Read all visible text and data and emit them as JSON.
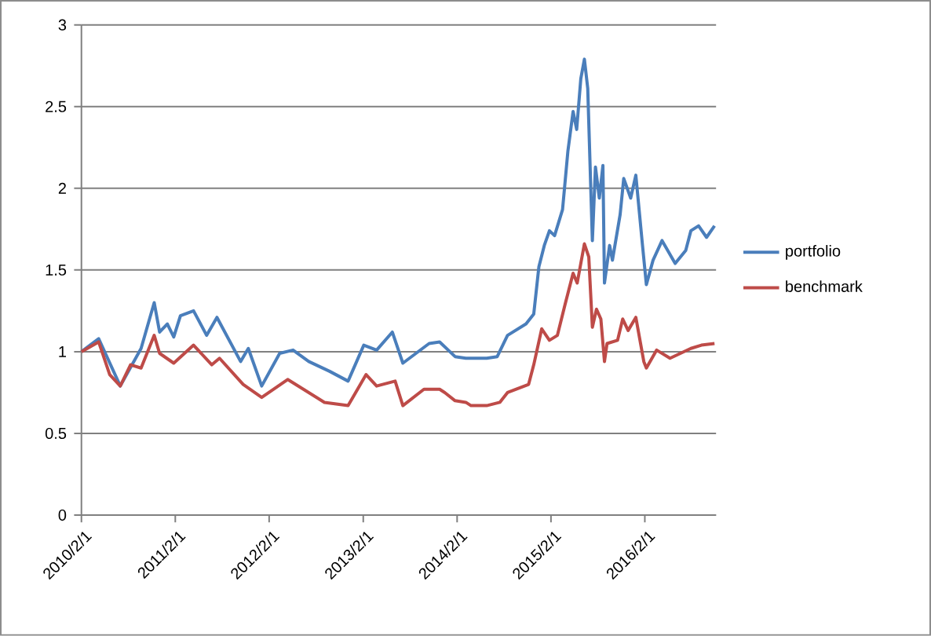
{
  "chart_data": {
    "type": "line",
    "xlim": [
      "2010-02-01",
      "2016-11-04"
    ],
    "ylim": [
      0,
      3
    ],
    "xticks": [
      {
        "value": "2010-02-01",
        "label": "2010/2/1"
      },
      {
        "value": "2011-02-01",
        "label": "2011/2/1"
      },
      {
        "value": "2012-02-01",
        "label": "2012/2/1"
      },
      {
        "value": "2013-02-01",
        "label": "2013/2/1"
      },
      {
        "value": "2014-02-01",
        "label": "2014/2/1"
      },
      {
        "value": "2015-02-01",
        "label": "2015/2/1"
      },
      {
        "value": "2016-02-01",
        "label": "2016/2/1"
      }
    ],
    "yticks": [
      0,
      0.5,
      1,
      1.5,
      2,
      2.5,
      3
    ],
    "grid": "y",
    "legend": "right",
    "marker": "none",
    "line_style": "solid",
    "series": [
      {
        "name": "portfolio",
        "color": "#4a7ebb",
        "x": [
          "2010-02-01",
          "2010-04-09",
          "2010-07-02",
          "2010-09-21",
          "2010-11-11",
          "2010-12-02",
          "2011-01-01",
          "2011-01-26",
          "2011-02-21",
          "2011-04-13",
          "2011-06-03",
          "2011-07-13",
          "2011-10-13",
          "2011-11-12",
          "2012-01-03",
          "2012-03-13",
          "2012-05-04",
          "2012-07-04",
          "2012-09-23",
          "2012-12-04",
          "2013-02-03",
          "2013-03-25",
          "2013-05-25",
          "2013-07-05",
          "2013-10-15",
          "2013-11-25",
          "2014-01-24",
          "2014-03-07",
          "2014-05-27",
          "2014-07-07",
          "2014-08-16",
          "2014-10-27",
          "2014-11-26",
          "2014-12-16",
          "2015-01-06",
          "2015-01-26",
          "2015-02-15",
          "2015-03-18",
          "2015-04-08",
          "2015-04-28",
          "2015-05-12",
          "2015-05-28",
          "2015-06-11",
          "2015-06-24",
          "2015-07-12",
          "2015-07-24",
          "2015-08-08",
          "2015-08-22",
          "2015-08-28",
          "2015-09-17",
          "2015-09-28",
          "2015-10-28",
          "2015-11-11",
          "2015-12-08",
          "2015-12-28",
          "2016-01-23",
          "2016-02-07",
          "2016-03-04",
          "2016-04-08",
          "2016-05-29",
          "2016-07-09",
          "2016-07-29",
          "2016-08-28",
          "2016-09-28",
          "2016-10-29"
        ],
        "values": [
          1.0,
          1.08,
          0.79,
          1.02,
          1.3,
          1.12,
          1.17,
          1.09,
          1.22,
          1.25,
          1.1,
          1.21,
          0.94,
          1.02,
          0.79,
          0.99,
          1.01,
          0.94,
          0.88,
          0.82,
          1.04,
          1.01,
          1.12,
          0.93,
          1.05,
          1.06,
          0.97,
          0.96,
          0.96,
          0.97,
          1.1,
          1.17,
          1.23,
          1.52,
          1.65,
          1.74,
          1.71,
          1.87,
          2.23,
          2.47,
          2.36,
          2.67,
          2.79,
          2.61,
          1.68,
          2.13,
          1.94,
          2.14,
          1.42,
          1.65,
          1.56,
          1.84,
          2.06,
          1.94,
          2.08,
          1.65,
          1.41,
          1.56,
          1.68,
          1.54,
          1.62,
          1.74,
          1.77,
          1.7,
          1.77
        ]
      },
      {
        "name": "benchmark",
        "color": "#be4b48",
        "x": [
          "2010-02-01",
          "2010-04-09",
          "2010-05-22",
          "2010-07-02",
          "2010-08-11",
          "2010-09-21",
          "2010-11-11",
          "2010-12-02",
          "2011-01-26",
          "2011-04-13",
          "2011-06-23",
          "2011-07-23",
          "2011-10-23",
          "2012-01-03",
          "2012-04-13",
          "2012-09-03",
          "2012-12-04",
          "2013-02-12",
          "2013-03-25",
          "2013-06-05",
          "2013-07-05",
          "2013-09-25",
          "2013-11-25",
          "2013-12-15",
          "2014-01-24",
          "2014-03-07",
          "2014-03-27",
          "2014-05-27",
          "2014-07-17",
          "2014-08-16",
          "2014-11-06",
          "2014-11-26",
          "2014-12-27",
          "2015-01-26",
          "2015-02-26",
          "2015-03-28",
          "2015-04-28",
          "2015-05-14",
          "2015-06-11",
          "2015-06-28",
          "2015-07-12",
          "2015-07-28",
          "2015-08-14",
          "2015-08-28",
          "2015-09-07",
          "2015-10-18",
          "2015-11-07",
          "2015-11-28",
          "2015-12-28",
          "2016-01-28",
          "2016-02-07",
          "2016-03-18",
          "2016-05-09",
          "2016-07-29",
          "2016-09-08",
          "2016-10-29"
        ],
        "values": [
          1.0,
          1.06,
          0.86,
          0.79,
          0.92,
          0.9,
          1.1,
          0.99,
          0.93,
          1.04,
          0.92,
          0.96,
          0.8,
          0.72,
          0.83,
          0.69,
          0.67,
          0.86,
          0.79,
          0.82,
          0.67,
          0.77,
          0.77,
          0.75,
          0.7,
          0.69,
          0.67,
          0.67,
          0.69,
          0.75,
          0.8,
          0.92,
          1.14,
          1.07,
          1.1,
          1.29,
          1.48,
          1.42,
          1.66,
          1.58,
          1.15,
          1.26,
          1.2,
          0.94,
          1.05,
          1.07,
          1.2,
          1.13,
          1.21,
          0.94,
          0.9,
          1.01,
          0.96,
          1.02,
          1.04,
          1.05
        ]
      }
    ]
  }
}
